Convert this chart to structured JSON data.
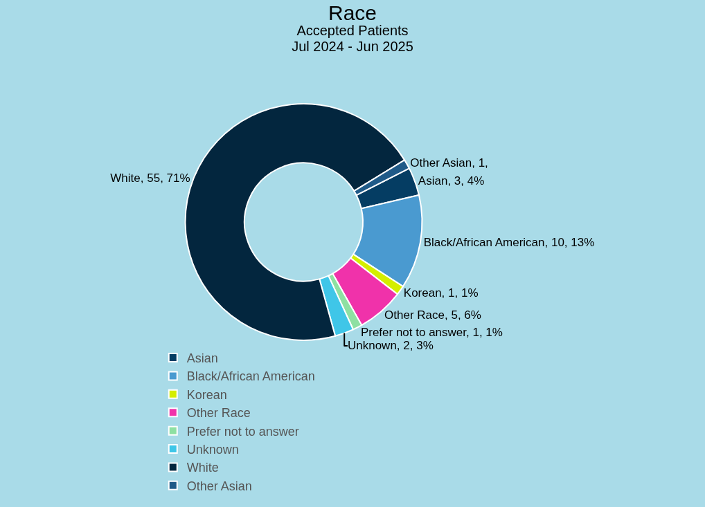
{
  "chart_data": {
    "type": "donut",
    "title": "Race",
    "subtitle": "Accepted Patients\nJul 2024 - Jun 2025",
    "categories": [
      "Asian",
      "Black/African American",
      "Korean",
      "Other Race",
      "Prefer not to answer",
      "Unknown",
      "White",
      "Other Asian"
    ],
    "values": [
      3,
      10,
      1,
      5,
      1,
      2,
      55,
      1
    ],
    "colors": [
      "#053d63",
      "#4a9ad0",
      "#d4ee00",
      "#f032aa",
      "#8ee0a2",
      "#3fc6e8",
      "#03263e",
      "#1f5a88"
    ],
    "value_labels": [
      "Asian, 3, 4%",
      "Black/African American, 10, 13%",
      "Korean, 1, 1%",
      "Other Race, 5, 6%",
      "Prefer not to answer, 1, 1%",
      "Unknown, 2, 3%",
      "White, 55, 71%",
      "Other Asian, 1,"
    ],
    "legend": "bottom"
  }
}
